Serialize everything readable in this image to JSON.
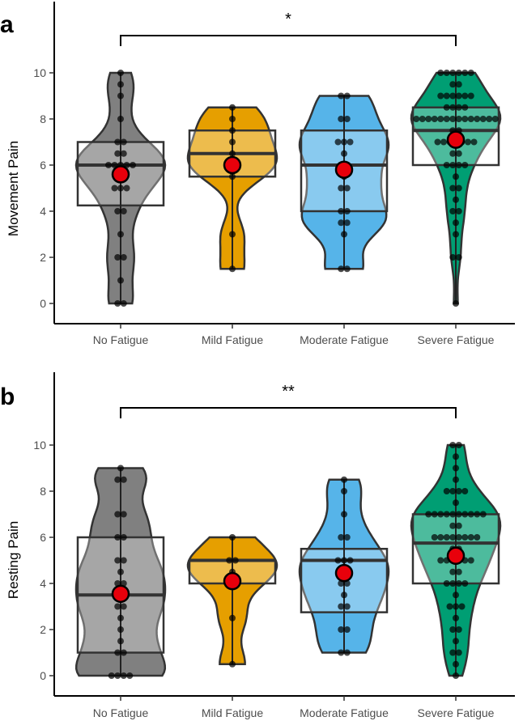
{
  "chart_data": [
    {
      "panel": "a",
      "type": "violin",
      "ylabel": "Movement Pain",
      "ylim": [
        0,
        10
      ],
      "yticks": [
        "0",
        "2",
        "4",
        "6",
        "8",
        "10"
      ],
      "categories": [
        "No Fatigue",
        "Mild Fatigue",
        "Moderate Fatigue",
        "Severe Fatigue"
      ],
      "colors": [
        "#808080",
        "#e69f00",
        "#56b4e9",
        "#009e73"
      ],
      "significance": {
        "from": "No Fatigue",
        "to": "Severe Fatigue",
        "label": "*"
      },
      "groups": [
        {
          "category": "No Fatigue",
          "min": 0,
          "max": 10,
          "q1": 4.25,
          "median": 6,
          "q3": 7,
          "mean": 5.6,
          "points": [
            0,
            0,
            1,
            2,
            2,
            3,
            4,
            4,
            5,
            5,
            5,
            5.5,
            6,
            6,
            6,
            6,
            6,
            6.5,
            6.5,
            7,
            7,
            8,
            9,
            9.5,
            10
          ]
        },
        {
          "category": "Mild Fatigue",
          "min": 1.5,
          "max": 8.5,
          "q1": 5.5,
          "median": 6.5,
          "q3": 7.5,
          "mean": 6.0,
          "points": [
            1.5,
            3,
            5.5,
            6,
            6,
            6.5,
            7,
            7.5,
            8,
            8.5
          ]
        },
        {
          "category": "Moderate Fatigue",
          "min": 1.5,
          "max": 9,
          "q1": 4,
          "median": 6,
          "q3": 7.5,
          "mean": 5.8,
          "points": [
            1.5,
            1.5,
            3,
            3.5,
            3.5,
            4,
            4,
            5,
            5,
            5.5,
            6,
            6.5,
            7,
            7,
            7,
            8,
            8,
            9,
            9
          ]
        },
        {
          "category": "Severe Fatigue",
          "min": 0,
          "max": 10,
          "q1": 6,
          "median": 7.5,
          "q3": 8.5,
          "mean": 7.1,
          "points": [
            0,
            2,
            2,
            3,
            3.5,
            4,
            4,
            4.5,
            5,
            5,
            5.5,
            6,
            6,
            6,
            6,
            6.5,
            6.5,
            7,
            7,
            7,
            7,
            7,
            7,
            7,
            7.5,
            7.5,
            8,
            8,
            8,
            8,
            8,
            8,
            8,
            8,
            8,
            8,
            8,
            8,
            8,
            8,
            8.5,
            8.5,
            8.5,
            8.5,
            9,
            9,
            9,
            9,
            9,
            9,
            9.5,
            9.5,
            10,
            10,
            10,
            10,
            10,
            10
          ]
        }
      ]
    },
    {
      "panel": "b",
      "type": "violin",
      "ylabel": "Resting Pain",
      "ylim": [
        0,
        10
      ],
      "yticks": [
        "0",
        "2",
        "4",
        "6",
        "8",
        "10"
      ],
      "categories": [
        "No Fatigue",
        "Mild Fatigue",
        "Moderate Fatigue",
        "Severe Fatigue"
      ],
      "colors": [
        "#808080",
        "#e69f00",
        "#56b4e9",
        "#009e73"
      ],
      "significance": {
        "from": "No Fatigue",
        "to": "Severe Fatigue",
        "label": "**"
      },
      "groups": [
        {
          "category": "No Fatigue",
          "min": 0,
          "max": 9,
          "q1": 1,
          "median": 3.5,
          "q3": 6,
          "mean": 3.55,
          "points": [
            0,
            0,
            0,
            0,
            1,
            1,
            1.5,
            2,
            2.5,
            3,
            3,
            3.5,
            4,
            4,
            4.5,
            5,
            5,
            6,
            6,
            7,
            7,
            8.5,
            8.5,
            9
          ]
        },
        {
          "category": "Mild Fatigue",
          "min": 0.5,
          "max": 6,
          "q1": 4,
          "median": 5,
          "q3": 5,
          "mean": 4.1,
          "points": [
            0.5,
            2.5,
            4,
            4.5,
            5,
            5,
            6
          ]
        },
        {
          "category": "Moderate Fatigue",
          "min": 1,
          "max": 8.5,
          "q1": 2.75,
          "median": 5,
          "q3": 5.5,
          "mean": 4.45,
          "points": [
            1,
            1,
            2,
            2,
            3,
            3,
            3.5,
            4,
            4,
            4.5,
            5,
            5,
            5,
            6,
            6,
            7,
            8,
            8.5
          ]
        },
        {
          "category": "Severe Fatigue",
          "min": 0,
          "max": 10,
          "q1": 4,
          "median": 5.75,
          "q3": 7,
          "mean": 5.2,
          "points": [
            0,
            0.5,
            1,
            1,
            1.5,
            2,
            2,
            2.5,
            3,
            3,
            3,
            3.5,
            4,
            4,
            4,
            4,
            4.5,
            4.5,
            5,
            5,
            5,
            5,
            5,
            5,
            5.5,
            5.5,
            6,
            6,
            6,
            6,
            6,
            6,
            6,
            6,
            6.5,
            6.5,
            7,
            7,
            7,
            7,
            7,
            7,
            7,
            7,
            7,
            7,
            7.5,
            8,
            8,
            8,
            8,
            8.5,
            9,
            9.5,
            10,
            10
          ]
        }
      ]
    }
  ]
}
